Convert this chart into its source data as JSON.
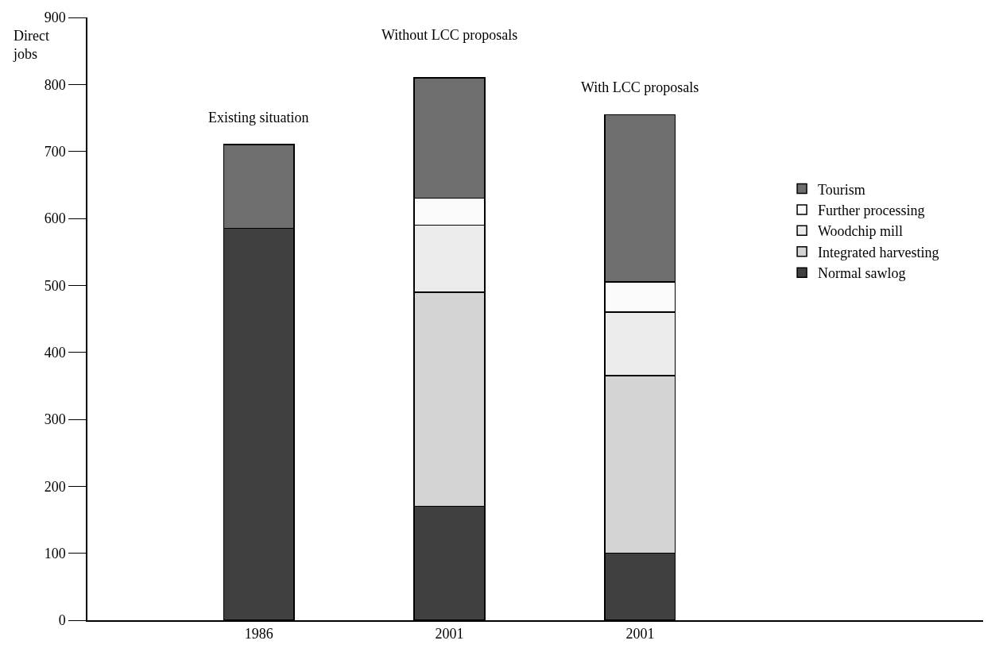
{
  "chart_data": {
    "type": "bar",
    "stacked": true,
    "ylabel": "Direct jobs",
    "categories": [
      "1986",
      "2001",
      "2001"
    ],
    "series": [
      {
        "name": "Normal sawlog",
        "color": "#404040",
        "values": [
          585,
          170,
          100
        ]
      },
      {
        "name": "Integrated harvesting",
        "color": "#d4d4d4",
        "values": [
          null,
          320,
          265
        ]
      },
      {
        "name": "Woodchip mill",
        "color": "#ebebeb",
        "values": [
          null,
          100,
          95
        ]
      },
      {
        "name": "Further processing",
        "color": "#fafafa",
        "values": [
          null,
          40,
          45
        ]
      },
      {
        "name": "Tourism",
        "color": "#6e6e6e",
        "values": [
          125,
          180,
          250
        ]
      }
    ],
    "annotations": [
      "Existing situation",
      "Without LCC proposals",
      "With LCC proposals"
    ],
    "ylim": [
      0,
      900
    ],
    "yticks": [
      0,
      100,
      200,
      300,
      400,
      500,
      600,
      700,
      800,
      900
    ],
    "legend": "right"
  }
}
